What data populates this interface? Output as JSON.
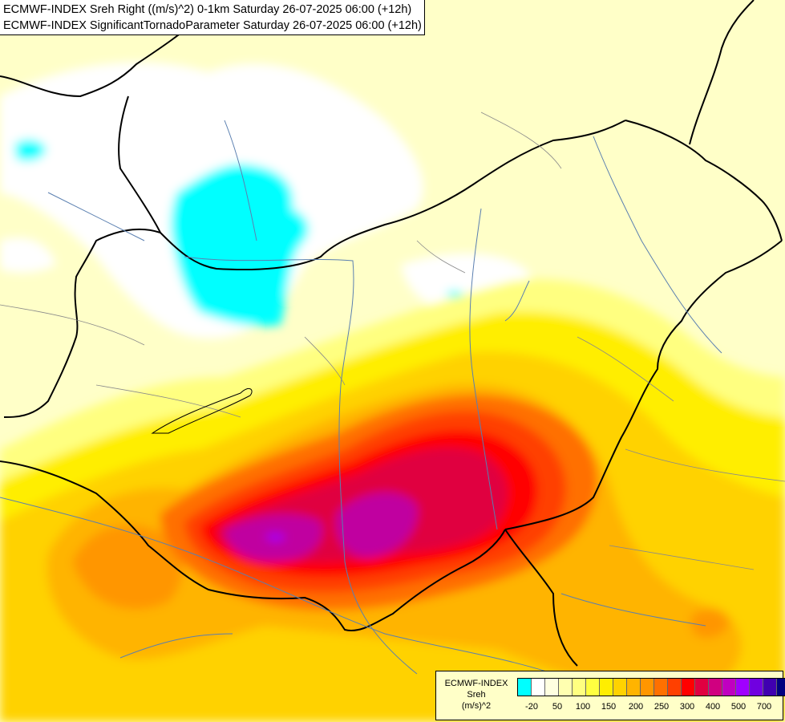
{
  "header": {
    "line1": "ECMWF-INDEX Sreh Right ((m/s)^2) 0-1km Saturday 26-07-2025 06:00 (+12h)",
    "line2": "ECMWF-INDEX SignificantTornadoParameter Saturday 26-07-2025 06:00 (+12h)"
  },
  "legend": {
    "title1": "ECMWF-INDEX",
    "title2": "Sreh",
    "title3": "(m/s)^2",
    "colors": [
      "#00ffff",
      "#ffffff",
      "#ffffe0",
      "#ffffb0",
      "#ffff80",
      "#ffff40",
      "#ffee00",
      "#ffd200",
      "#ffb400",
      "#ff9600",
      "#ff7000",
      "#ff4000",
      "#ff0000",
      "#e00040",
      "#d00080",
      "#c000c0",
      "#a000ff",
      "#7000e0",
      "#4000b0",
      "#000080"
    ],
    "tick_labels": [
      "-20",
      "50",
      "100",
      "150",
      "200",
      "250",
      "300",
      "400",
      "500",
      "700"
    ]
  }
}
